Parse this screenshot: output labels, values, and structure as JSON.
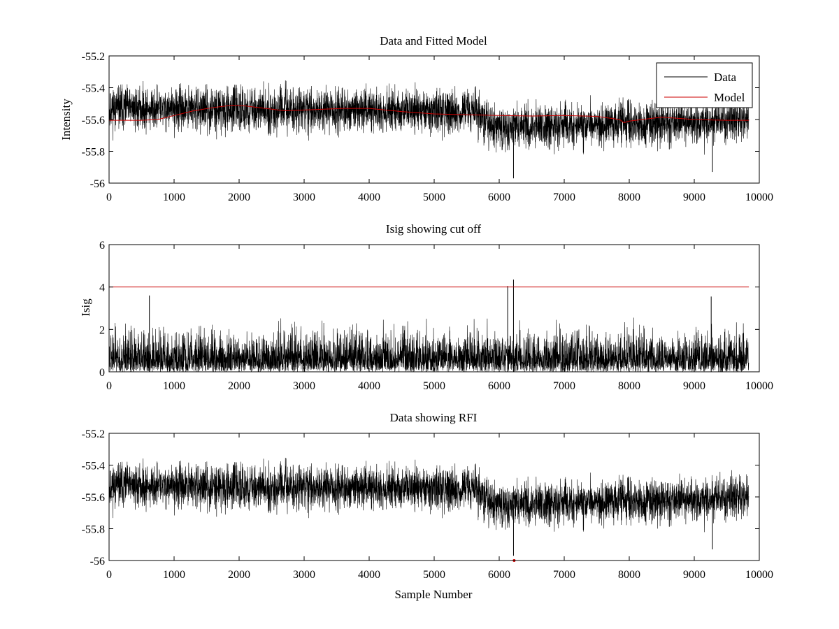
{
  "figure": {
    "background": "#ffffff"
  },
  "chart_data": [
    {
      "id": "top",
      "type": "line",
      "title": "Data and Fitted Model",
      "xlabel": "",
      "ylabel": "Intensity",
      "xlim": [
        0,
        10000
      ],
      "ylim": [
        -56,
        -55.2
      ],
      "xticks": [
        0,
        1000,
        2000,
        3000,
        4000,
        5000,
        6000,
        7000,
        8000,
        9000,
        10000
      ],
      "yticks": [
        -56,
        -55.8,
        -55.6,
        -55.4,
        -55.2
      ],
      "xtick_labels": [
        "0",
        "1000",
        "2000",
        "3000",
        "4000",
        "5000",
        "6000",
        "7000",
        "8000",
        "9000",
        "10000"
      ],
      "ytick_labels": [
        "-56",
        "-55.8",
        "-55.6",
        "-55.4",
        "-55.2"
      ],
      "grid": false,
      "legend": {
        "position": "top-right",
        "entries": [
          "Data",
          "Model"
        ]
      },
      "series": [
        {
          "name": "Data",
          "color": "#000000",
          "kind": "noise",
          "n_samples": 9840,
          "baseline": [
            [
              0,
              -55.53
            ],
            [
              5600,
              -55.55
            ],
            [
              5900,
              -55.65
            ],
            [
              9840,
              -55.61
            ]
          ],
          "noise_amplitude": 0.12,
          "seed": 11,
          "spikes": [
            [
              6220,
              -55.97
            ],
            [
              9280,
              -55.93
            ]
          ]
        },
        {
          "name": "Model",
          "color": "#cc0000",
          "x": [
            0,
            500,
            750,
            1000,
            1300,
            1600,
            1900,
            2100,
            2400,
            2700,
            3000,
            3300,
            3600,
            4000,
            4500,
            5000,
            5500,
            6000,
            6500,
            7000,
            7500,
            7850,
            7920,
            8000,
            8200,
            8500,
            9000,
            9500,
            9840
          ],
          "y": [
            -55.605,
            -55.605,
            -55.6,
            -55.575,
            -55.545,
            -55.525,
            -55.51,
            -55.515,
            -55.53,
            -55.545,
            -55.54,
            -55.535,
            -55.53,
            -55.53,
            -55.55,
            -55.565,
            -55.57,
            -55.575,
            -55.578,
            -55.575,
            -55.58,
            -55.6,
            -55.62,
            -55.61,
            -55.6,
            -55.585,
            -55.6,
            -55.605,
            -55.605
          ]
        }
      ]
    },
    {
      "id": "middle",
      "type": "line",
      "title": "Isig showing cut off",
      "xlabel": "",
      "ylabel": "Isig",
      "xlim": [
        0,
        10000
      ],
      "ylim": [
        0,
        6
      ],
      "xticks": [
        0,
        1000,
        2000,
        3000,
        4000,
        5000,
        6000,
        7000,
        8000,
        9000,
        10000
      ],
      "yticks": [
        0,
        2,
        4,
        6
      ],
      "xtick_labels": [
        "0",
        "1000",
        "2000",
        "3000",
        "4000",
        "5000",
        "6000",
        "7000",
        "8000",
        "9000",
        "10000"
      ],
      "ytick_labels": [
        "0",
        "2",
        "4",
        "6"
      ],
      "grid": false,
      "series": [
        {
          "name": "Isig",
          "color": "#000000",
          "kind": "abs-noise",
          "n_samples": 9840,
          "noise_amplitude": 1.0,
          "seed": 23,
          "spikes": [
            [
              6130,
              4.05
            ],
            [
              6220,
              4.35
            ],
            [
              620,
              3.6
            ],
            [
              9260,
              3.55
            ]
          ]
        },
        {
          "name": "Cut off",
          "color": "#cc0000",
          "x": [
            0,
            9840
          ],
          "y": [
            4,
            4
          ]
        }
      ]
    },
    {
      "id": "bottom",
      "type": "line",
      "title": "Data showing RFI",
      "xlabel": "Sample Number",
      "ylabel": "",
      "xlim": [
        0,
        10000
      ],
      "ylim": [
        -56,
        -55.2
      ],
      "xticks": [
        0,
        1000,
        2000,
        3000,
        4000,
        5000,
        6000,
        7000,
        8000,
        9000,
        10000
      ],
      "yticks": [
        -56,
        -55.8,
        -55.6,
        -55.4,
        -55.2
      ],
      "xtick_labels": [
        "0",
        "1000",
        "2000",
        "3000",
        "4000",
        "5000",
        "6000",
        "7000",
        "8000",
        "9000",
        "10000"
      ],
      "ytick_labels": [
        "-56",
        "-55.8",
        "-55.6",
        "-55.4",
        "-55.2"
      ],
      "grid": false,
      "series": [
        {
          "name": "Data",
          "color": "#000000",
          "kind": "noise",
          "n_samples": 9840,
          "baseline": [
            [
              0,
              -55.53
            ],
            [
              5600,
              -55.55
            ],
            [
              5900,
              -55.65
            ],
            [
              9840,
              -55.61
            ]
          ],
          "noise_amplitude": 0.12,
          "seed": 11,
          "spikes": [
            [
              6220,
              -55.97
            ],
            [
              9280,
              -55.93
            ]
          ]
        },
        {
          "name": "RFI",
          "color": "#cc0000",
          "kind": "markers",
          "x": [
            6230
          ],
          "y": [
            -56
          ]
        }
      ]
    }
  ]
}
